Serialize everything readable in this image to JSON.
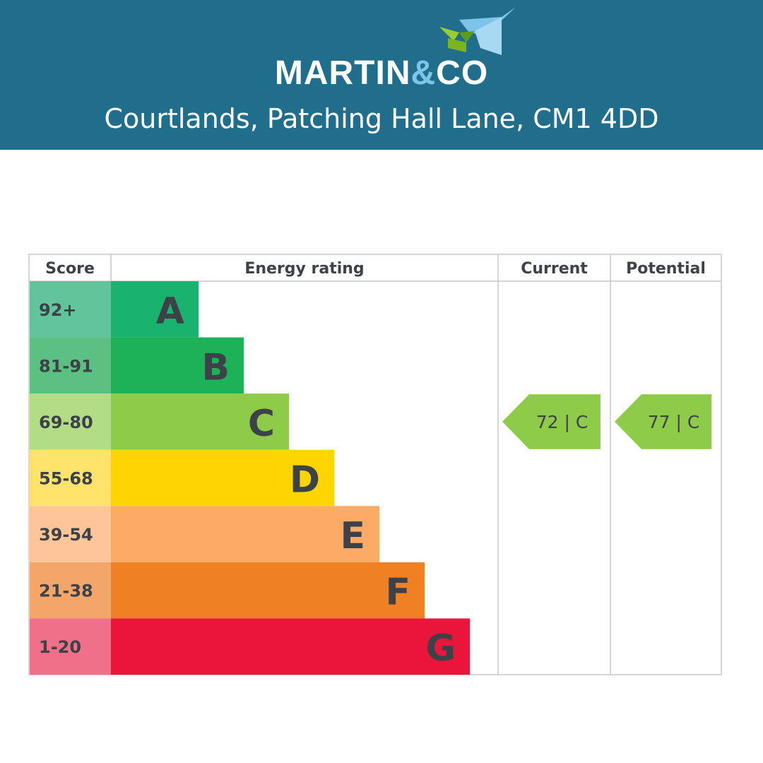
{
  "brand": {
    "logo_part1": "MARTIN",
    "logo_amp": "&",
    "logo_part2": "CO",
    "icon": "house-roof-logo-icon",
    "header_color": "#206e8b"
  },
  "property": {
    "address": "Courtlands, Patching Hall Lane, CM1 4DD"
  },
  "chart_data": {
    "type": "table",
    "columns": [
      "Score",
      "Energy rating",
      "Current",
      "Potential"
    ],
    "bands": [
      {
        "score": "92+",
        "letter": "A",
        "color": "#19b36f",
        "score_color": "#62c49b"
      },
      {
        "score": "81-91",
        "letter": "B",
        "color": "#1db257",
        "score_color": "#5cc083"
      },
      {
        "score": "69-80",
        "letter": "C",
        "color": "#8dcb49",
        "score_color": "#b3dc87"
      },
      {
        "score": "55-68",
        "letter": "D",
        "color": "#ffd500",
        "score_color": "#ffe36a"
      },
      {
        "score": "39-54",
        "letter": "E",
        "color": "#fcaa65",
        "score_color": "#fdc599"
      },
      {
        "score": "21-38",
        "letter": "F",
        "color": "#ef8023",
        "score_color": "#f4a66a"
      },
      {
        "score": "1-20",
        "letter": "G",
        "color": "#e9153b",
        "score_color": "#ef7088"
      }
    ],
    "current": {
      "value": 72,
      "band": "C",
      "label": "72 | C",
      "color": "#8dcb49"
    },
    "potential": {
      "value": 77,
      "band": "C",
      "label": "77 | C",
      "color": "#8dcb49"
    }
  }
}
